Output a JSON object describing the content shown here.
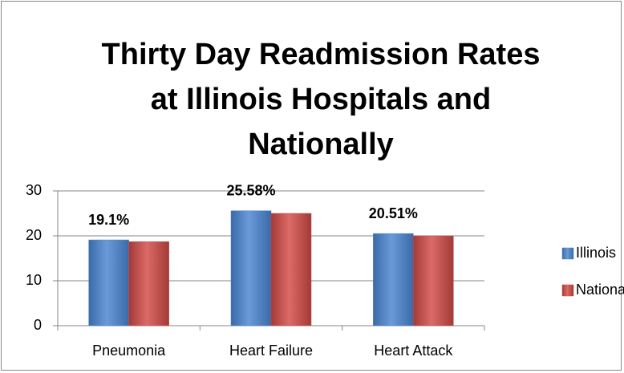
{
  "chart_data": {
    "type": "bar",
    "title": [
      "Thirty Day Readmission Rates",
      "at Illinois Hospitals and",
      "Nationally"
    ],
    "categories": [
      "Pneumonia",
      "Heart Failure",
      "Heart Attack"
    ],
    "series": [
      {
        "name": "Illinois",
        "color": "#4f81bd",
        "values": [
          19.1,
          25.58,
          20.51
        ],
        "value_labels": [
          "19.1%",
          "25.58%",
          "20.51%"
        ]
      },
      {
        "name": "National",
        "color": "#c0504d",
        "values": [
          18.7,
          25.0,
          20.0
        ]
      }
    ],
    "ylim": [
      0,
      30
    ],
    "yticks": [
      0,
      10,
      20,
      30
    ],
    "grid": true,
    "legend": "right"
  }
}
